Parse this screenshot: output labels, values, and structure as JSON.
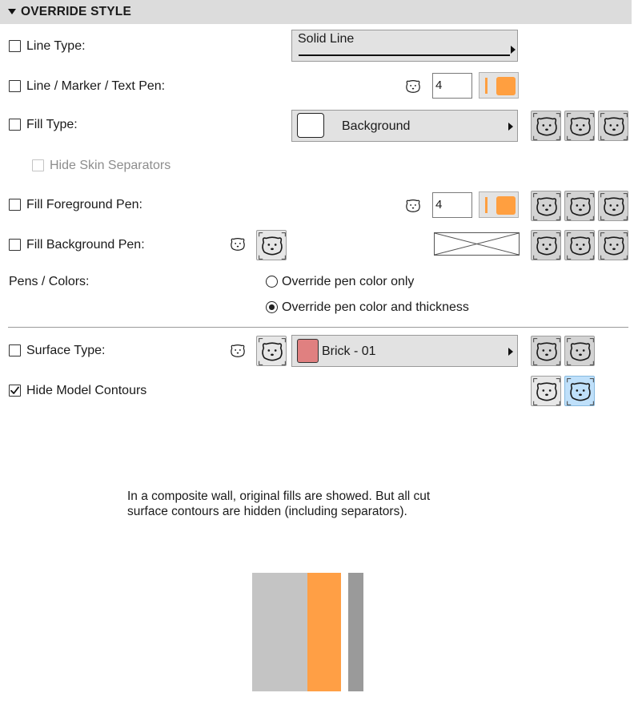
{
  "section": {
    "title": "OVERRIDE STYLE"
  },
  "rows": {
    "line_type": {
      "label": "Line Type:",
      "value": "Solid Line"
    },
    "line_pen": {
      "label": "Line / Marker / Text Pen:",
      "pen_number": "4",
      "pen_color": "#ff9f40"
    },
    "fill_type": {
      "label": "Fill Type:",
      "value": "Background"
    },
    "hide_skin": {
      "label": "Hide Skin Separators"
    },
    "fill_fg_pen": {
      "label": "Fill Foreground Pen:",
      "pen_number": "4",
      "pen_color": "#ff9f40"
    },
    "fill_bg_pen": {
      "label": "Fill Background Pen:"
    },
    "pens_colors": {
      "label": "Pens / Colors:",
      "options": [
        "Override pen color only",
        "Override pen color and thickness"
      ],
      "selected": "Override pen color and thickness"
    },
    "surface_type": {
      "label": "Surface Type:",
      "value": "Brick - 01",
      "swatch_color": "#e08080"
    },
    "hide_contours": {
      "label": "Hide Model Contours",
      "checked": true
    }
  },
  "note": {
    "line1": "In a composite wall, original fills are showed. But all cut",
    "line2": "surface contours are hidden (including separators)."
  },
  "preview": {
    "layers": [
      {
        "name": "layer-1",
        "color": "#c4c4c4"
      },
      {
        "name": "layer-2",
        "color": "#ff9f45"
      },
      {
        "name": "layer-3",
        "color": "#ffffff"
      },
      {
        "name": "layer-4",
        "color": "#9a9a9a"
      }
    ]
  },
  "icons": {
    "bear": "bear-face-icon",
    "check": "checkmark-icon",
    "disclosure": "triangle-down-icon",
    "arrow": "chevron-right-icon"
  }
}
